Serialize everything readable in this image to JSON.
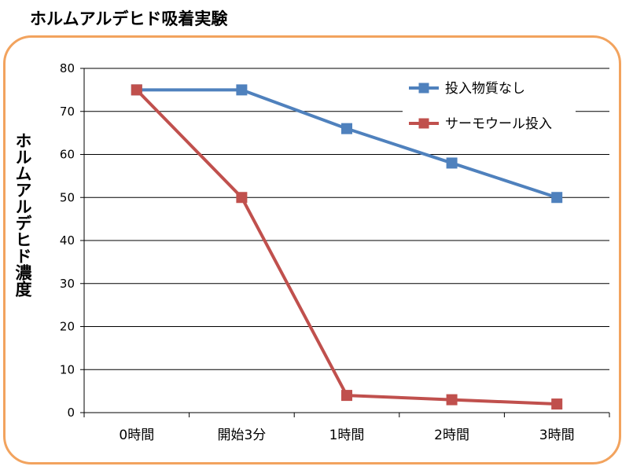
{
  "title": "ホルムアルデヒド吸着実験",
  "chart_data": {
    "type": "line",
    "title": "ホルムアルデヒド吸着実験",
    "xlabel": "",
    "ylabel": "ホルムアルデヒド濃度",
    "categories": [
      "0時間",
      "開始3分",
      "1時間",
      "2時間",
      "3時間"
    ],
    "ylim": [
      0,
      80
    ],
    "yticks": [
      0,
      10,
      20,
      30,
      40,
      50,
      60,
      70,
      80
    ],
    "grid": true,
    "legend_position": "top-right",
    "series": [
      {
        "name": "投入物質なし",
        "color": "#4F81BD",
        "values": [
          75,
          75,
          66,
          58,
          50
        ]
      },
      {
        "name": "サーモウール投入",
        "color": "#C0504D",
        "values": [
          75,
          50,
          4,
          3,
          2
        ]
      }
    ]
  },
  "colors": {
    "frame": "#F2A35E",
    "grid": "#000000"
  }
}
